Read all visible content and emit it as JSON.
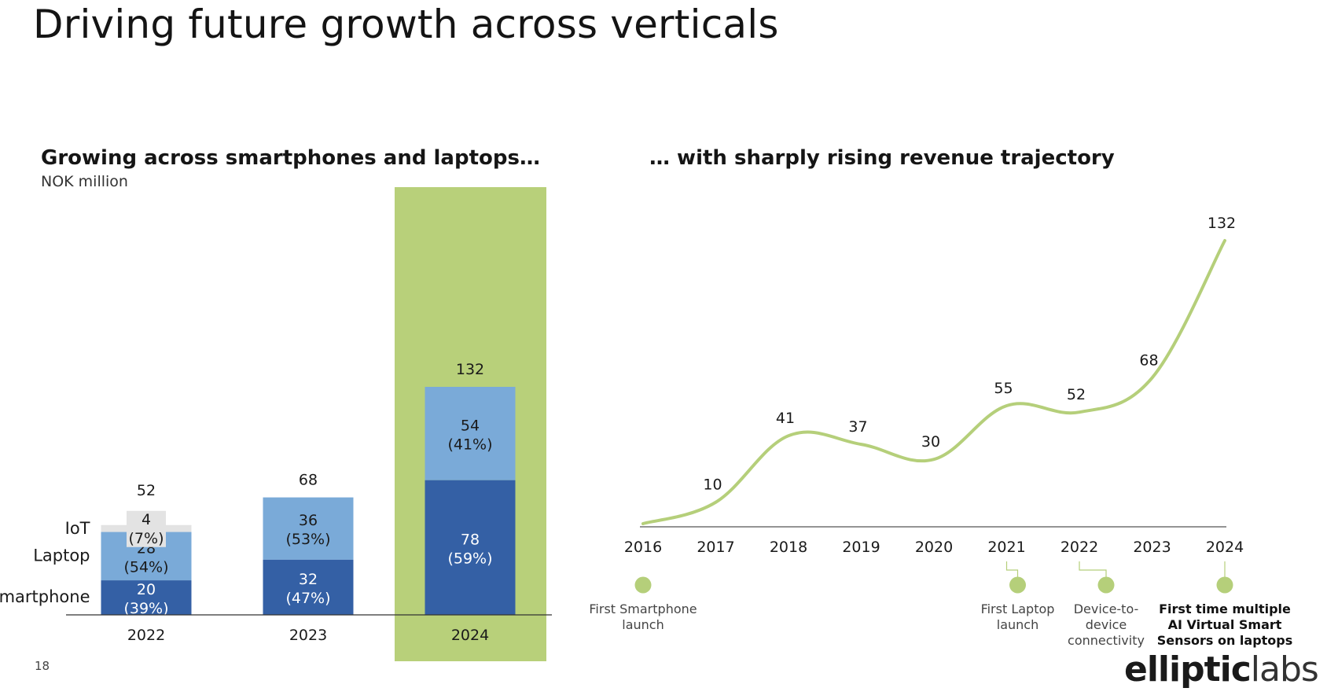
{
  "title": "Driving future growth across verticals",
  "page_number": "18",
  "logo": {
    "part1": "elliptic",
    "part2": "labs"
  },
  "left_panel": {
    "heading": "Growing across smartphones and laptops…",
    "unit": "NOK million"
  },
  "right_panel": {
    "heading": "… with sharply rising revenue trajectory"
  },
  "colors": {
    "smartphone": "#3460A5",
    "laptop": "#7AAAD8",
    "iot": "#E3E3E3",
    "highlight": "#B8D07A",
    "line": "#B5CF7A",
    "milestone_dot": "#B5CF7A"
  },
  "chart_data": [
    {
      "type": "bar",
      "stacked": true,
      "categories": [
        "2022",
        "2023",
        "2024"
      ],
      "series": [
        {
          "name": "Smartphone",
          "values": [
            20,
            32,
            78
          ],
          "labels": [
            "20",
            "32",
            "78"
          ],
          "pct": [
            "(39%)",
            "(47%)",
            "(59%)"
          ]
        },
        {
          "name": "Laptop",
          "values": [
            28,
            36,
            54
          ],
          "labels": [
            "28",
            "36",
            "54"
          ],
          "pct": [
            "(54%)",
            "(53%)",
            "(41%)"
          ]
        },
        {
          "name": "IoT",
          "values": [
            4,
            0,
            0
          ],
          "labels": [
            "4",
            "",
            ""
          ],
          "pct": [
            "(7%)",
            "",
            ""
          ]
        }
      ],
      "totals": [
        "52",
        "68",
        "132"
      ],
      "highlight_category": "2024",
      "ylim": [
        0,
        132
      ]
    },
    {
      "type": "line",
      "x": [
        "2016",
        "2017",
        "2018",
        "2019",
        "2020",
        "2021",
        "2022",
        "2023",
        "2024"
      ],
      "y": [
        0,
        10,
        41,
        37,
        30,
        55,
        52,
        68,
        132
      ],
      "point_labels": [
        "",
        "10",
        "41",
        "37",
        "30",
        "55",
        "52",
        "68",
        "132"
      ],
      "ylim": [
        0,
        132
      ],
      "milestones": [
        {
          "x": "2016",
          "lines": [
            "First Smartphone",
            "launch"
          ],
          "bold": false
        },
        {
          "x": "2021",
          "lines": [
            "First Laptop",
            "launch"
          ],
          "bold": false
        },
        {
          "x": "2022",
          "lines": [
            "Device-to-",
            "device",
            "connectivity"
          ],
          "bold": false
        },
        {
          "x": "2024",
          "lines": [
            "First time multiple",
            "AI Virtual Smart",
            "Sensors on laptops"
          ],
          "bold": true
        }
      ]
    }
  ]
}
